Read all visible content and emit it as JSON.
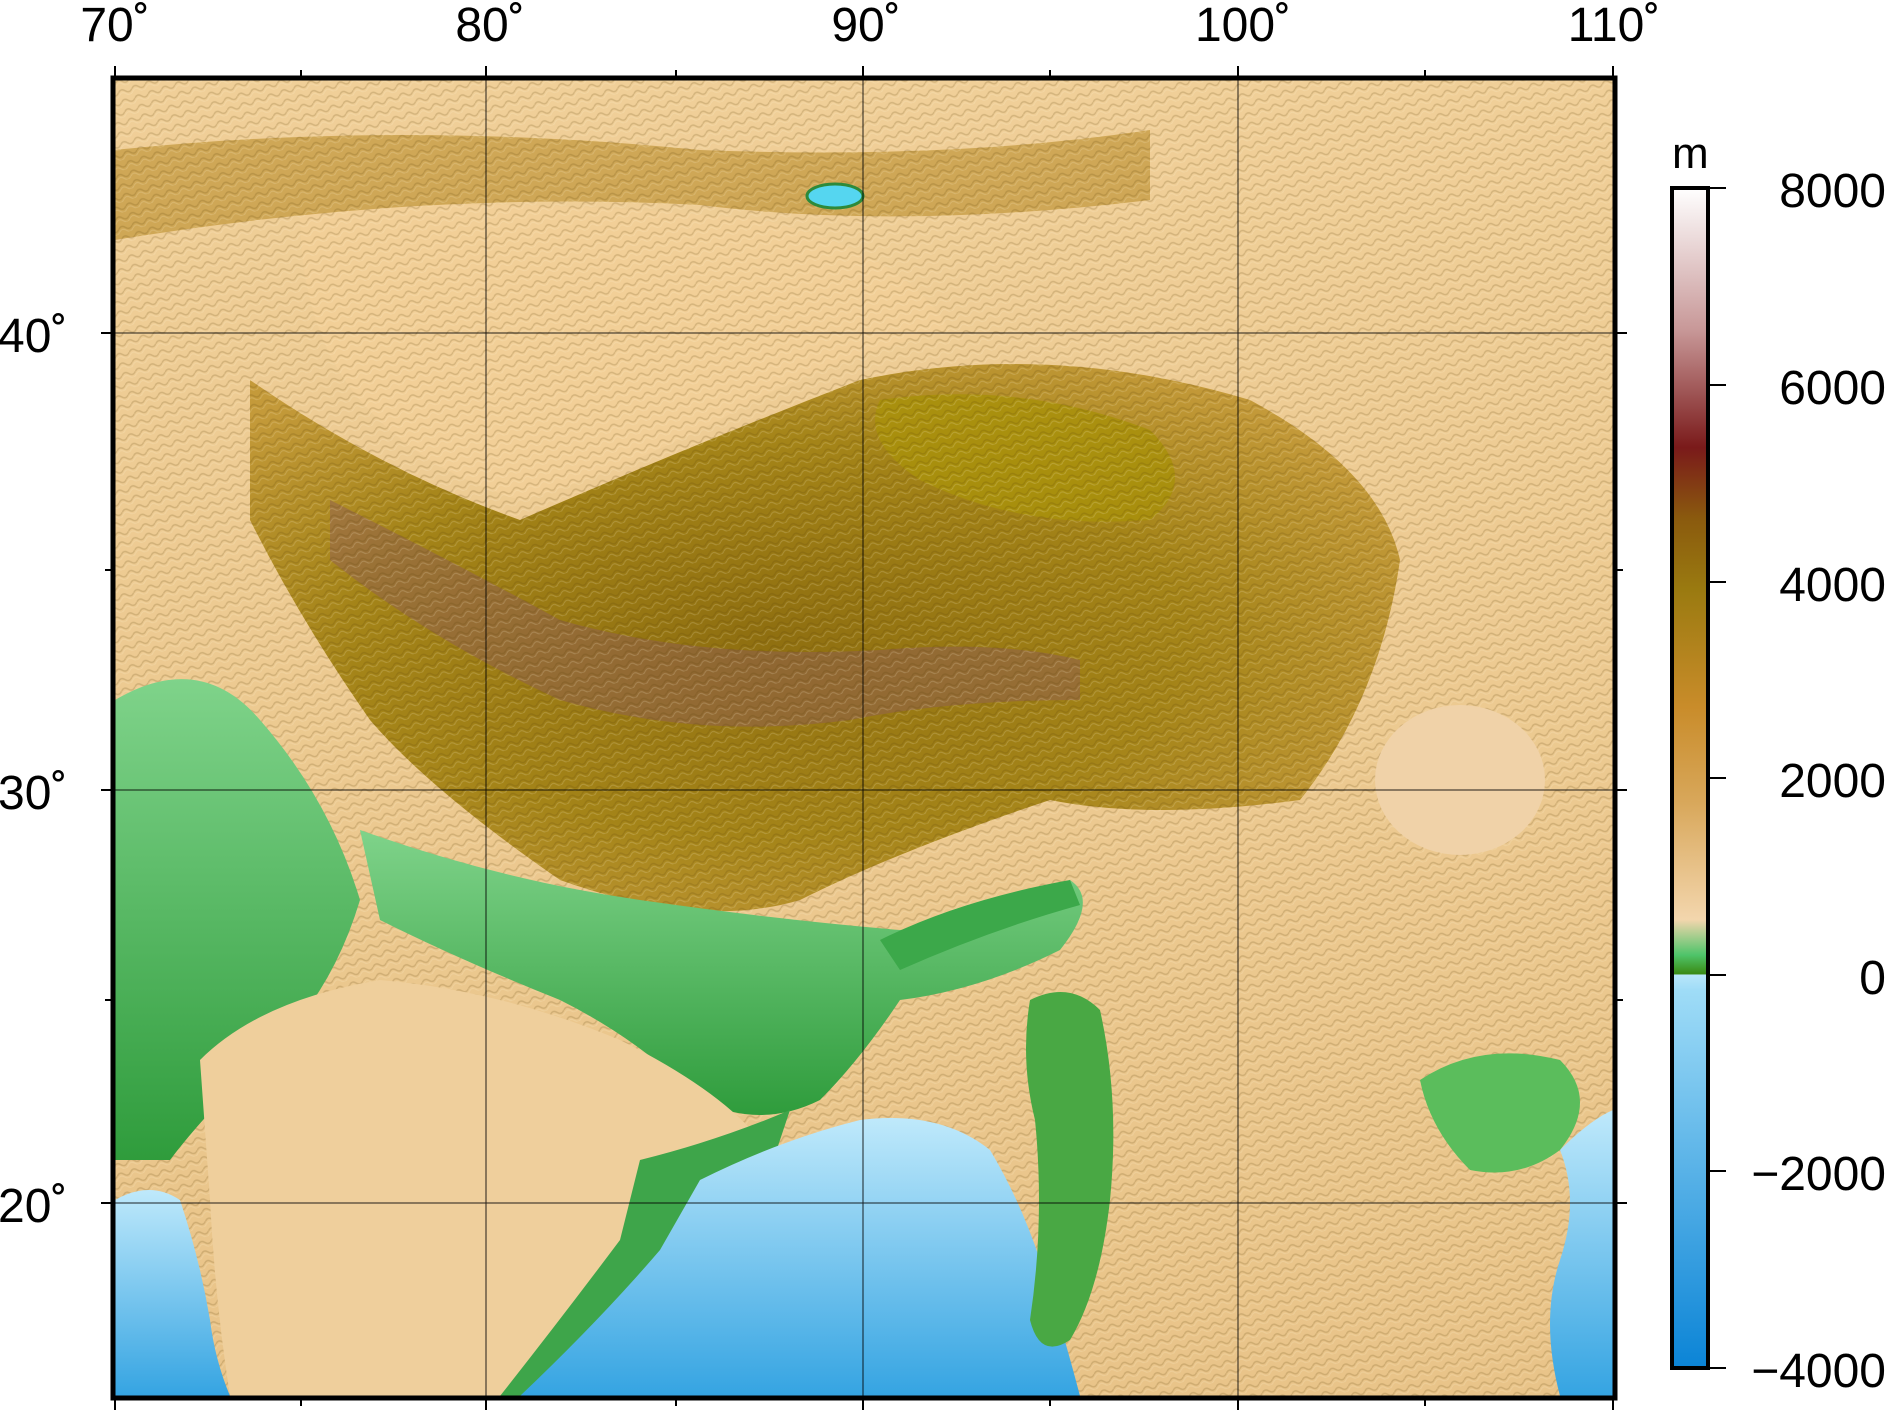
{
  "map": {
    "lon_labels": [
      "70˚",
      "80˚",
      "90˚",
      "100˚",
      "110˚"
    ],
    "lat_labels": [
      "40˚",
      "30˚",
      "20˚"
    ],
    "lon_range": [
      70,
      110
    ],
    "lat_range": [
      15.5,
      46
    ],
    "grid": true
  },
  "colorbar": {
    "unit": "m",
    "ticks": [
      "8000",
      "6000",
      "4000",
      "2000",
      "0",
      "−2000",
      "−4000"
    ],
    "range": [
      -4000,
      8000
    ],
    "colors": {
      "deep": "#0b84d6",
      "shallow": "#b8e6fa",
      "coast": "#3a8a14",
      "low": "#4fc46a",
      "lowland": "#f3d6ad",
      "mid": "#c98c2a",
      "high": "#9a7a10",
      "peak": "#7a1a1a",
      "summit": "#ffffff"
    }
  }
}
